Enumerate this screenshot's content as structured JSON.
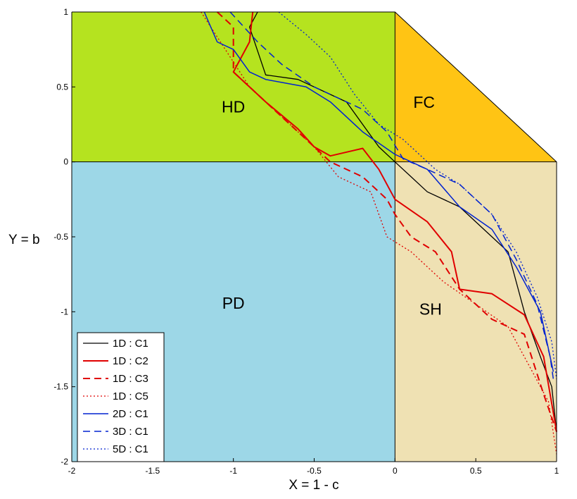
{
  "chart_data": {
    "type": "line",
    "xlabel": "X = 1 - c",
    "ylabel": "Y = b",
    "xlim": [
      -2,
      1
    ],
    "ylim": [
      -2,
      1
    ],
    "x_ticks": [
      "-2",
      "-1.5",
      "-1",
      "-0.5",
      "0",
      "0.5",
      "1"
    ],
    "y_ticks": [
      "1",
      "0.5",
      "0",
      "-0.5",
      "-1",
      "-1.5",
      "-2"
    ],
    "regions": [
      {
        "label": "HD",
        "color": "#b5e31f"
      },
      {
        "label": "FC",
        "color": "#ffc414"
      },
      {
        "label": "PD",
        "color": "#9dd7e7"
      },
      {
        "label": "SH",
        "color": "#efe1b3"
      }
    ],
    "legend_position": "bottom-left",
    "series": [
      {
        "name": "1D : C1",
        "color": "#000000",
        "style": "solid",
        "width": 1.3,
        "points": [
          [
            -0.85,
            1.0
          ],
          [
            -0.9,
            0.9
          ],
          [
            -0.8,
            0.58
          ],
          [
            -0.6,
            0.55
          ],
          [
            -0.3,
            0.4
          ],
          [
            -0.1,
            0.1
          ],
          [
            0.0,
            0.0
          ],
          [
            0.1,
            -0.1
          ],
          [
            0.2,
            -0.2
          ],
          [
            0.4,
            -0.3
          ],
          [
            0.6,
            -0.5
          ],
          [
            0.7,
            -0.6
          ],
          [
            0.8,
            -1.0
          ],
          [
            0.9,
            -1.3
          ],
          [
            0.97,
            -1.5
          ],
          [
            1.0,
            -1.8
          ]
        ]
      },
      {
        "name": "1D : C2",
        "color": "#e00000",
        "style": "solid",
        "width": 2.0,
        "points": [
          [
            -0.88,
            1.0
          ],
          [
            -0.9,
            0.8
          ],
          [
            -1.0,
            0.6
          ],
          [
            -0.8,
            0.4
          ],
          [
            -0.6,
            0.22
          ],
          [
            -0.5,
            0.1
          ],
          [
            -0.4,
            0.04
          ],
          [
            -0.2,
            0.09
          ],
          [
            -0.1,
            -0.05
          ],
          [
            0.0,
            -0.25
          ],
          [
            0.2,
            -0.4
          ],
          [
            0.35,
            -0.6
          ],
          [
            0.4,
            -0.85
          ],
          [
            0.6,
            -0.88
          ],
          [
            0.8,
            -1.02
          ],
          [
            0.92,
            -1.3
          ],
          [
            1.0,
            -1.8
          ]
        ]
      },
      {
        "name": "1D : C3",
        "color": "#e00000",
        "style": "dashed",
        "width": 2.0,
        "points": [
          [
            -1.1,
            1.0
          ],
          [
            -1.0,
            0.9
          ],
          [
            -1.0,
            0.6
          ],
          [
            -0.8,
            0.4
          ],
          [
            -0.6,
            0.2
          ],
          [
            -0.4,
            0.0
          ],
          [
            -0.2,
            -0.1
          ],
          [
            -0.05,
            -0.25
          ],
          [
            0.0,
            -0.35
          ],
          [
            0.1,
            -0.5
          ],
          [
            0.25,
            -0.6
          ],
          [
            0.4,
            -0.85
          ],
          [
            0.6,
            -1.05
          ],
          [
            0.8,
            -1.15
          ],
          [
            0.92,
            -1.55
          ],
          [
            1.0,
            -1.8
          ]
        ]
      },
      {
        "name": "1D : C5",
        "color": "#e00000",
        "style": "dotted",
        "width": 1.3,
        "points": [
          [
            -1.2,
            1.0
          ],
          [
            -1.05,
            0.75
          ],
          [
            -0.9,
            0.5
          ],
          [
            -0.7,
            0.3
          ],
          [
            -0.5,
            0.1
          ],
          [
            -0.35,
            -0.1
          ],
          [
            -0.15,
            -0.2
          ],
          [
            -0.05,
            -0.5
          ],
          [
            0.1,
            -0.6
          ],
          [
            0.3,
            -0.8
          ],
          [
            0.5,
            -0.95
          ],
          [
            0.7,
            -1.1
          ],
          [
            0.85,
            -1.4
          ],
          [
            0.95,
            -1.6
          ],
          [
            1.0,
            -1.95
          ]
        ]
      },
      {
        "name": "2D : C1",
        "color": "#0022d0",
        "style": "solid",
        "width": 1.5,
        "points": [
          [
            -1.18,
            1.0
          ],
          [
            -1.1,
            0.8
          ],
          [
            -1.0,
            0.75
          ],
          [
            -0.9,
            0.6
          ],
          [
            -0.8,
            0.55
          ],
          [
            -0.55,
            0.5
          ],
          [
            -0.4,
            0.4
          ],
          [
            -0.2,
            0.2
          ],
          [
            0.0,
            0.05
          ],
          [
            0.2,
            -0.05
          ],
          [
            0.4,
            -0.3
          ],
          [
            0.6,
            -0.45
          ],
          [
            0.75,
            -0.7
          ],
          [
            0.9,
            -1.0
          ],
          [
            0.98,
            -1.4
          ]
        ]
      },
      {
        "name": "3D : C1",
        "color": "#0022d0",
        "style": "dashed",
        "width": 1.5,
        "points": [
          [
            -1.02,
            1.0
          ],
          [
            -0.85,
            0.8
          ],
          [
            -0.7,
            0.65
          ],
          [
            -0.5,
            0.5
          ],
          [
            -0.2,
            0.35
          ],
          [
            -0.05,
            0.2
          ],
          [
            0.05,
            0.02
          ],
          [
            0.2,
            -0.05
          ],
          [
            0.4,
            -0.15
          ],
          [
            0.6,
            -0.35
          ],
          [
            0.75,
            -0.65
          ],
          [
            0.88,
            -0.95
          ],
          [
            0.96,
            -1.3
          ],
          [
            0.98,
            -1.45
          ]
        ]
      },
      {
        "name": "5D : C1",
        "color": "#0022d0",
        "style": "dotted",
        "width": 1.3,
        "points": [
          [
            -0.72,
            1.0
          ],
          [
            -0.55,
            0.85
          ],
          [
            -0.4,
            0.7
          ],
          [
            -0.25,
            0.45
          ],
          [
            -0.1,
            0.25
          ],
          [
            0.05,
            0.15
          ],
          [
            0.15,
            0.05
          ],
          [
            0.25,
            -0.05
          ],
          [
            0.4,
            -0.15
          ],
          [
            0.6,
            -0.35
          ],
          [
            0.75,
            -0.6
          ],
          [
            0.88,
            -0.9
          ],
          [
            0.97,
            -1.2
          ],
          [
            1.0,
            -1.45
          ]
        ]
      }
    ]
  }
}
